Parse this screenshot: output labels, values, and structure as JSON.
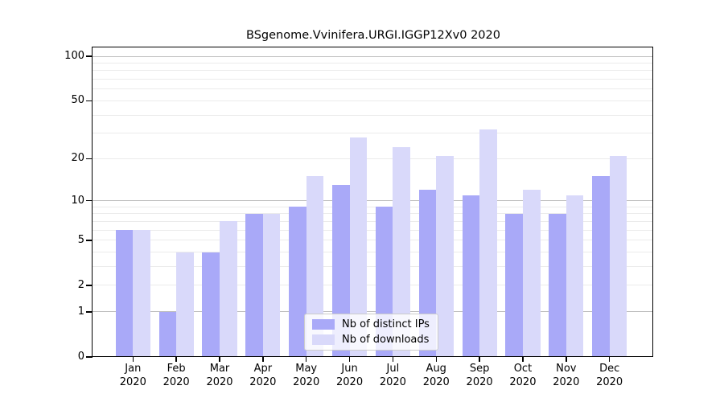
{
  "chart_data": {
    "type": "bar",
    "title": "BSgenome.Vvinifera.URGI.IGGP12Xv0 2020",
    "categories": [
      "Jan",
      "Feb",
      "Mar",
      "Apr",
      "May",
      "Jun",
      "Jul",
      "Aug",
      "Sep",
      "Oct",
      "Nov",
      "Dec"
    ],
    "x_year": "2020",
    "series": [
      {
        "name": "Nb of distinct IPs",
        "color": "#a9a9f8",
        "values": [
          6,
          1,
          4,
          8,
          9,
          13,
          9,
          12,
          11,
          8,
          8,
          15
        ]
      },
      {
        "name": "Nb of downloads",
        "color": "#d9d9fa",
        "values": [
          6,
          4,
          7,
          8,
          15,
          28,
          24,
          21,
          32,
          12,
          11,
          21
        ]
      }
    ],
    "y_tick_values": [
      0,
      1,
      2,
      5,
      10,
      20,
      50,
      100
    ],
    "ylim": [
      0,
      100
    ],
    "y_scale": "log10(1+x)",
    "grid": "horizontal minor lines at 2-9 and 20-90, darker lines at 1, 10, 100",
    "legend_position": "lower center"
  },
  "colors": {
    "distinct_ips": "#a9a9f8",
    "downloads": "#d9d9fa",
    "major_grid": "#bdbdbd",
    "minor_grid": "#ebebeb",
    "axis": "#000000",
    "background": "#ffffff"
  }
}
